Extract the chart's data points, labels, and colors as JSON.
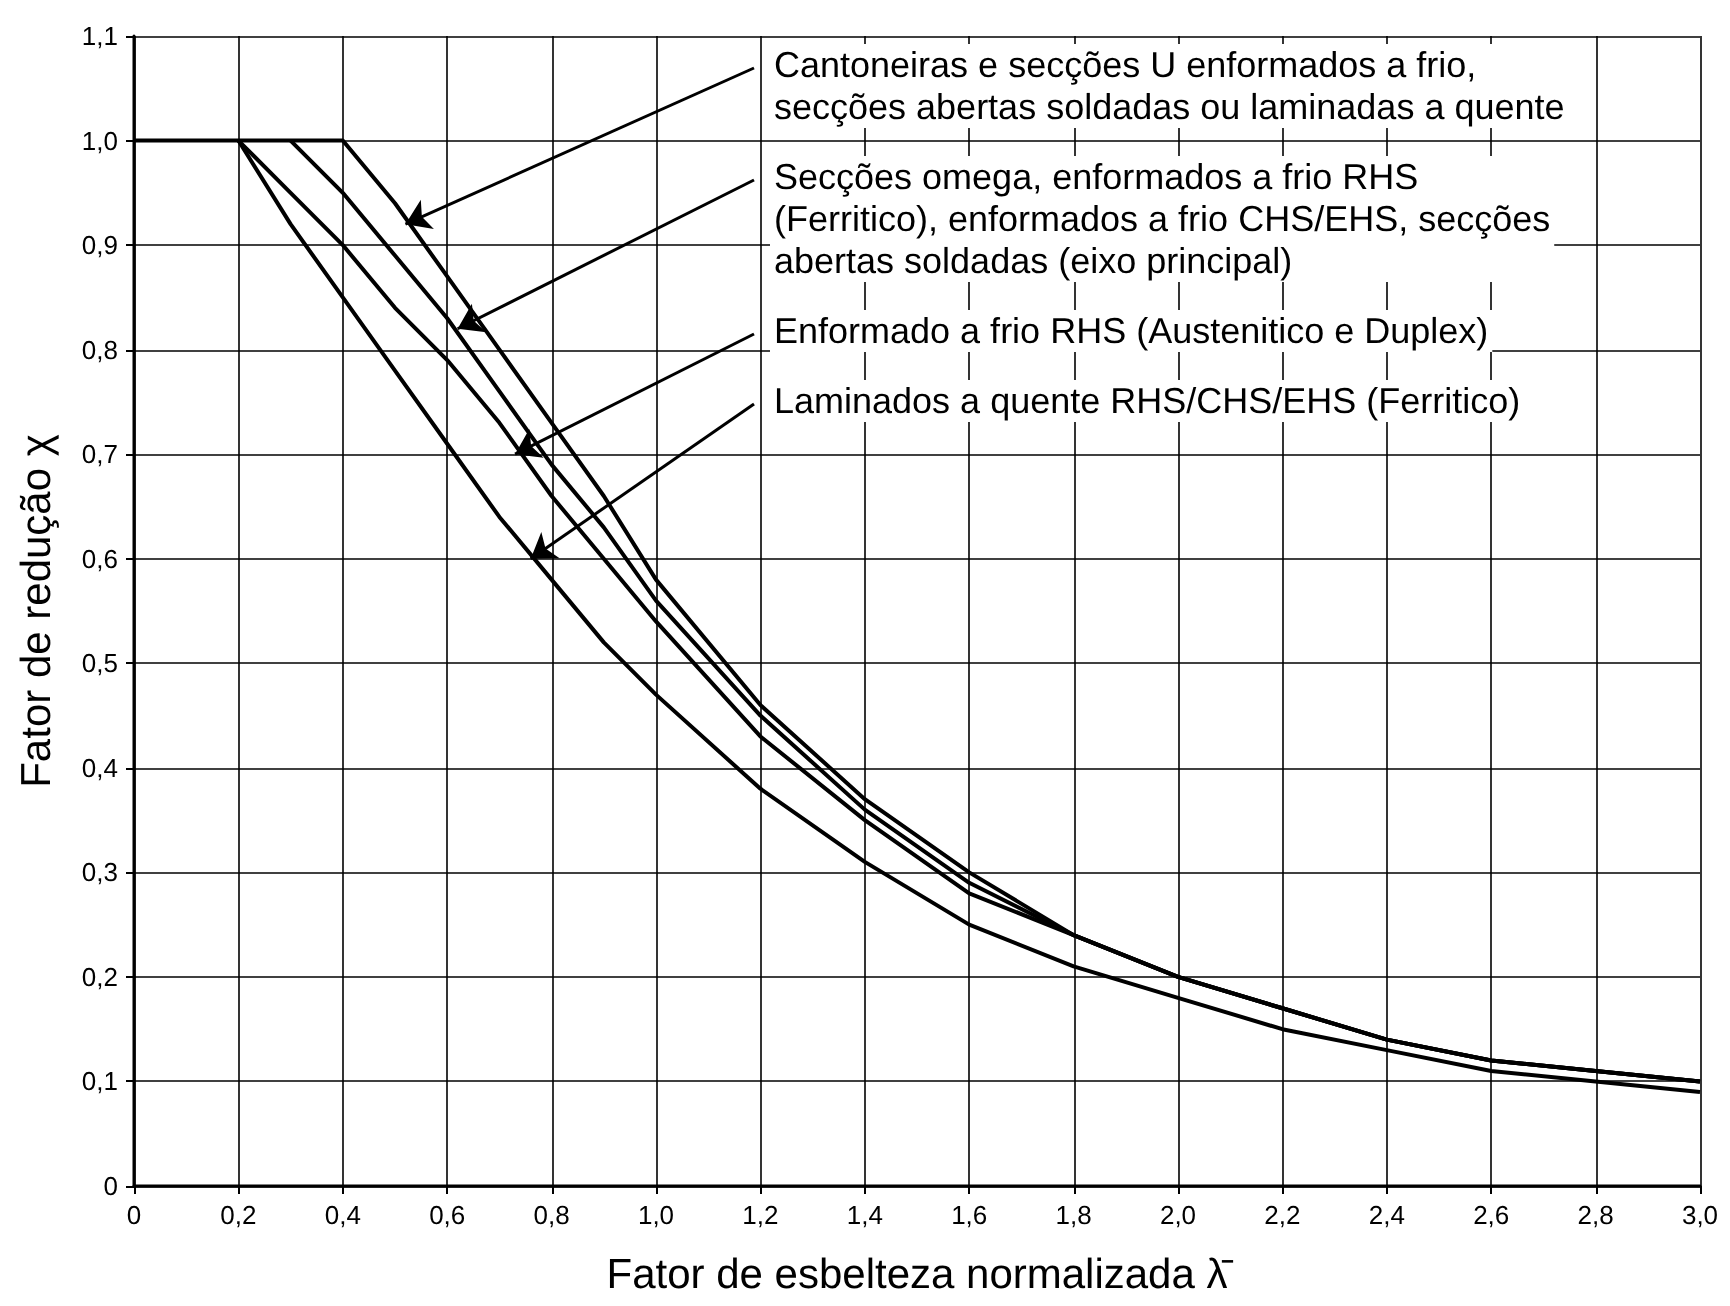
{
  "chart_data": {
    "type": "line",
    "xlabel": "Fator de esbelteza normalizada λ̄",
    "ylabel": "Fator de redução χ",
    "xlim": [
      0,
      3.0
    ],
    "xticks": [
      0,
      {
        "value": 0.2,
        "label": "0,2"
      },
      {
        "value": 0.4,
        "label": "0,4"
      },
      {
        "value": 0.6,
        "label": "0,6"
      },
      {
        "value": 0.8,
        "label": "0,8"
      },
      {
        "value": 1.0,
        "label": "1,0"
      },
      {
        "value": 1.2,
        "label": "1,2"
      },
      {
        "value": 1.4,
        "label": "1,4"
      },
      {
        "value": 1.6,
        "label": "1,6"
      },
      {
        "value": 1.8,
        "label": "1,8"
      },
      {
        "value": 2.0,
        "label": "2,0"
      },
      {
        "value": 2.2,
        "label": "2,2"
      },
      {
        "value": 2.4,
        "label": "2,4"
      },
      {
        "value": 2.6,
        "label": "2,6"
      },
      {
        "value": 2.8,
        "label": "2,8"
      },
      {
        "value": 3.0,
        "label": "3,0"
      }
    ],
    "ylim": [
      0,
      1.1
    ],
    "yticks": [
      0,
      {
        "value": 0.1,
        "label": "0,1"
      },
      {
        "value": 0.2,
        "label": "0,2"
      },
      {
        "value": 0.3,
        "label": "0,3"
      },
      {
        "value": 0.4,
        "label": "0,4"
      },
      {
        "value": 0.5,
        "label": "0,5"
      },
      {
        "value": 0.6,
        "label": "0,6"
      },
      {
        "value": 0.7,
        "label": "0,7"
      },
      {
        "value": 0.8,
        "label": "0,8"
      },
      {
        "value": 0.9,
        "label": "0,9"
      },
      {
        "value": 1.0,
        "label": "1,0"
      },
      {
        "value": 1.1,
        "label": "1,1"
      }
    ],
    "grid": true,
    "marker": "none",
    "series": [
      {
        "color": "#000000",
        "x": [
          0,
          0.4,
          0.5,
          0.6,
          0.7,
          0.8,
          0.9,
          1.0,
          1.2,
          1.4,
          1.6,
          1.8,
          2.0,
          2.2,
          2.4,
          2.6,
          2.8,
          3.0
        ],
        "values": [
          1.0,
          1.0,
          0.94,
          0.87,
          0.8,
          0.73,
          0.66,
          0.58,
          0.46,
          0.37,
          0.3,
          0.24,
          0.2,
          0.17,
          0.14,
          0.12,
          0.11,
          0.1
        ]
      },
      {
        "color": "#000000",
        "x": [
          0.3,
          0.4,
          0.5,
          0.6,
          0.7,
          0.8,
          0.9,
          1.0,
          1.2,
          1.4,
          1.6,
          1.8,
          2.0,
          2.2,
          2.4,
          2.6,
          2.8,
          3.0
        ],
        "values": [
          1.0,
          0.95,
          0.89,
          0.83,
          0.76,
          0.69,
          0.63,
          0.56,
          0.45,
          0.36,
          0.29,
          0.24,
          0.2,
          0.17,
          0.14,
          0.12,
          0.11,
          0.1
        ]
      },
      {
        "color": "#000000",
        "x": [
          0.2,
          0.3,
          0.4,
          0.5,
          0.6,
          0.7,
          0.8,
          0.9,
          1.0,
          1.2,
          1.4,
          1.6,
          1.8,
          2.0,
          2.2,
          2.4,
          2.6,
          2.8,
          3.0
        ],
        "values": [
          1.0,
          0.95,
          0.9,
          0.84,
          0.79,
          0.73,
          0.66,
          0.6,
          0.54,
          0.43,
          0.35,
          0.28,
          0.24,
          0.2,
          0.17,
          0.14,
          0.12,
          0.11,
          0.1
        ]
      },
      {
        "color": "#000000",
        "x": [
          0.2,
          0.3,
          0.4,
          0.5,
          0.6,
          0.7,
          0.8,
          0.9,
          1.0,
          1.2,
          1.4,
          1.6,
          1.8,
          2.0,
          2.2,
          2.4,
          2.6,
          2.8,
          3.0
        ],
        "values": [
          1.0,
          0.92,
          0.85,
          0.78,
          0.71,
          0.64,
          0.58,
          0.52,
          0.47,
          0.38,
          0.31,
          0.25,
          0.21,
          0.18,
          0.15,
          0.13,
          0.11,
          0.1,
          0.09
        ]
      }
    ],
    "annotations": [
      {
        "text": "Cantoneiras e secções U enformados a frio, secções abertas soldadas ou laminadas a quente",
        "x": 0.52,
        "y": 0.92
      },
      {
        "text": "Secções omega, enformados a frio RHS (Ferritico), enformados a frio CHS/EHS, secções abertas soldadas (eixo principal)",
        "x": 0.62,
        "y": 0.82
      },
      {
        "text": "Enformado a frio RHS (Austenitico e Duplex)",
        "x": 0.73,
        "y": 0.7
      },
      {
        "text": "Laminados a quente RHS/CHS/EHS (Ferritico)",
        "x": 0.76,
        "y": 0.6
      }
    ]
  }
}
